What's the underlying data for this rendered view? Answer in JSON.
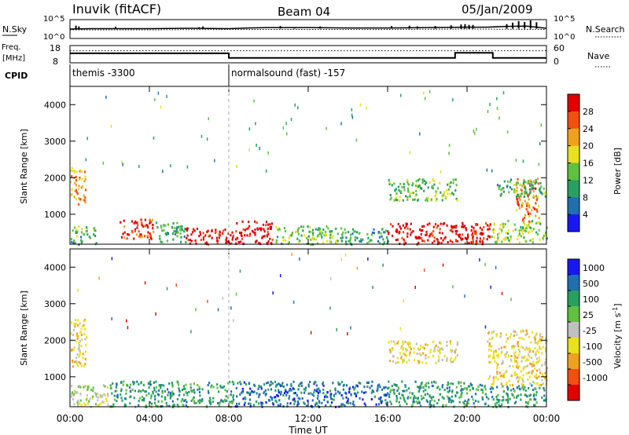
{
  "header": {
    "station": "Inuvik (fitACF)",
    "beam": "Beam 04",
    "date": "05/Jan/2009"
  },
  "chart_data": [
    {
      "type": "line",
      "panel": "noise",
      "left_label": "N.Sky",
      "right_label": "N.Search",
      "left_ticks": [
        "10^5",
        "10^0"
      ],
      "right_ticks": [
        "10^5",
        "10^0"
      ],
      "series": [
        {
          "name": "N.Sky",
          "style": "solid",
          "x": [
            0,
            1,
            2,
            4,
            6,
            8,
            9,
            10,
            12,
            14,
            16,
            18,
            20,
            21,
            22,
            23,
            24
          ],
          "y": [
            2.5,
            2.6,
            2.6,
            2.6,
            2.7,
            2.6,
            2.8,
            2.9,
            2.9,
            2.8,
            2.8,
            2.9,
            3.0,
            3.0,
            3.2,
            3.3,
            2.7
          ]
        },
        {
          "name": "N.Search",
          "style": "dotted",
          "x": [
            0,
            4,
            8,
            12,
            16,
            20,
            24
          ],
          "y": [
            2.3,
            2.3,
            2.4,
            2.4,
            2.4,
            2.5,
            2.4
          ]
        }
      ],
      "spikes": [
        [
          0.3,
          3.4
        ],
        [
          0.45,
          3.2
        ],
        [
          2.3,
          3.1
        ],
        [
          6.5,
          3.0
        ],
        [
          6.7,
          3.2
        ],
        [
          10.6,
          3.3
        ],
        [
          11.3,
          3.0
        ],
        [
          12.6,
          3.2
        ],
        [
          16.2,
          3.3
        ],
        [
          17.1,
          3.4
        ],
        [
          17.5,
          3.2
        ],
        [
          18.4,
          3.3
        ],
        [
          19.2,
          3.5
        ],
        [
          19.7,
          3.7
        ],
        [
          19.9,
          3.8
        ],
        [
          20.1,
          3.6
        ],
        [
          20.3,
          3.6
        ],
        [
          22.0,
          3.8
        ],
        [
          22.3,
          4.2
        ],
        [
          22.6,
          4.6
        ],
        [
          22.9,
          4.4
        ],
        [
          23.2,
          4.8
        ],
        [
          23.5,
          4.3
        ]
      ]
    },
    {
      "type": "line",
      "panel": "frequency",
      "left_label": "Freq. [MHz]",
      "right_label": "Nave",
      "left_ticks": [
        "18",
        "8"
      ],
      "right_ticks": [
        "60",
        "0"
      ],
      "series": [
        {
          "name": "Freq.",
          "style": "solid",
          "x": [
            0,
            8.0,
            8.0,
            19.4,
            19.4,
            21.3,
            21.3,
            24
          ],
          "y": [
            0.55,
            0.55,
            0.28,
            0.28,
            0.58,
            0.58,
            0.28,
            0.28
          ]
        },
        {
          "name": "Nave",
          "style": "dotted",
          "x": [
            0,
            24
          ],
          "y": [
            0.7,
            0.7
          ]
        }
      ]
    },
    {
      "type": "table",
      "panel": "cpid",
      "label": "CPID",
      "segments": [
        {
          "start": 0,
          "end": 8.0,
          "text": "themis -3300"
        },
        {
          "start": 8.0,
          "end": 24,
          "text": "normalsound (fast) -157"
        }
      ]
    },
    {
      "type": "heatmap",
      "panel": "power",
      "ylabel": "Slant Range [km]",
      "xlim": [
        0,
        24
      ],
      "ylim": [
        180,
        4500
      ],
      "yticks": [
        1000,
        2000,
        3000,
        4000
      ],
      "colorbar": {
        "label": "Power [dB]",
        "ticks": [
          "4",
          "8",
          "12",
          "16",
          "20",
          "24",
          "28"
        ],
        "range": [
          0,
          32
        ],
        "colors": [
          "#1818f0",
          "#2070b0",
          "#28a060",
          "#60c040",
          "#e8e020",
          "#f0a020",
          "#f05010",
          "#e00000"
        ]
      },
      "blobs": [
        {
          "t0": 0.0,
          "t1": 0.8,
          "r0": 1300,
          "r1": 2300,
          "val": 20
        },
        {
          "t0": 0.0,
          "t1": 1.3,
          "r0": 200,
          "r1": 700,
          "val": 10
        },
        {
          "t0": 2.5,
          "t1": 4.2,
          "r0": 350,
          "r1": 900,
          "val": 26
        },
        {
          "t0": 4.3,
          "t1": 5.8,
          "r0": 250,
          "r1": 800,
          "val": 10
        },
        {
          "t0": 5.8,
          "t1": 8.2,
          "r0": 200,
          "r1": 650,
          "val": 29
        },
        {
          "t0": 8.3,
          "t1": 10.2,
          "r0": 200,
          "r1": 850,
          "val": 30
        },
        {
          "t0": 10.3,
          "t1": 13.5,
          "r0": 200,
          "r1": 700,
          "val": 12
        },
        {
          "t0": 13.6,
          "t1": 16.0,
          "r0": 200,
          "r1": 650,
          "val": 9
        },
        {
          "t0": 16.0,
          "t1": 21.2,
          "r0": 200,
          "r1": 800,
          "val": 29
        },
        {
          "t0": 21.2,
          "t1": 24.0,
          "r0": 250,
          "r1": 850,
          "val": 13
        },
        {
          "t0": 22.4,
          "t1": 23.6,
          "r0": 800,
          "r1": 2000,
          "val": 22
        },
        {
          "t0": 16.0,
          "t1": 19.5,
          "r0": 1400,
          "r1": 2000,
          "val": 11
        },
        {
          "t0": 21.5,
          "t1": 24.0,
          "r0": 1500,
          "r1": 2000,
          "val": 10
        }
      ]
    },
    {
      "type": "heatmap",
      "panel": "velocity",
      "ylabel": "Slant Range [km]",
      "xlabel": "Time UT",
      "xlim": [
        0,
        24
      ],
      "ylim": [
        180,
        4500
      ],
      "yticks": [
        1000,
        2000,
        3000,
        4000
      ],
      "xticks": [
        "00:00",
        "04:00",
        "08:00",
        "12:00",
        "16:00",
        "20:00",
        "00:00"
      ],
      "colorbar": {
        "label": "Velocity [m s^-1]",
        "ticks": [
          "1000",
          "500",
          "100",
          "25",
          "-25",
          "-100",
          "-500",
          "-1000"
        ],
        "colors": [
          "#1818f0",
          "#2070b0",
          "#28a060",
          "#60c040",
          "#c0c0c0",
          "#e8e020",
          "#f0a020",
          "#f05010",
          "#e00000"
        ]
      },
      "blobs": [
        {
          "t0": 0.0,
          "t1": 0.8,
          "r0": 1300,
          "r1": 2600,
          "val": "-100"
        },
        {
          "t0": 0.0,
          "t1": 2.0,
          "r0": 200,
          "r1": 800,
          "val": "-25"
        },
        {
          "t0": 2.0,
          "t1": 8.2,
          "r0": 200,
          "r1": 900,
          "val": "100"
        },
        {
          "t0": 8.3,
          "t1": 16.0,
          "r0": 200,
          "r1": 900,
          "val": "500"
        },
        {
          "t0": 16.0,
          "t1": 21.2,
          "r0": 200,
          "r1": 900,
          "val": "100"
        },
        {
          "t0": 21.2,
          "t1": 24.0,
          "r0": 200,
          "r1": 800,
          "val": "100"
        },
        {
          "t0": 16.0,
          "t1": 19.5,
          "r0": 1400,
          "r1": 2000,
          "val": "-100"
        },
        {
          "t0": 21.0,
          "t1": 24.0,
          "r0": 800,
          "r1": 2300,
          "val": "-100"
        }
      ]
    }
  ]
}
